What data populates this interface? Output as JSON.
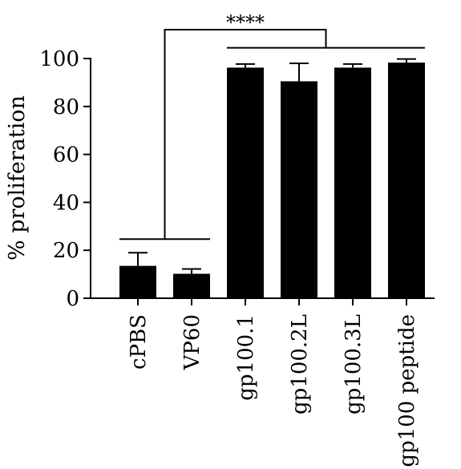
{
  "chart_data": {
    "type": "bar",
    "title": "",
    "xlabel": "",
    "ylabel": "% proliferation",
    "ylim": [
      0,
      100
    ],
    "yticks": [
      0,
      20,
      40,
      60,
      80,
      100
    ],
    "categories": [
      "cPBS",
      "VP60",
      "gp100.1",
      "gp100.2L",
      "gp100.3L",
      "gp100 peptide"
    ],
    "values": [
      13.5,
      10.2,
      96.2,
      90.5,
      96.2,
      98.3
    ],
    "error_upper": [
      5.5,
      2.0,
      1.5,
      7.5,
      1.5,
      1.5
    ],
    "bar_color": "#000000",
    "grid": false,
    "legend": "none",
    "significance": {
      "label": "****",
      "left_group": [
        "cPBS",
        "VP60"
      ],
      "right_group": [
        "gp100.1",
        "gp100.2L",
        "gp100.3L",
        "gp100 peptide"
      ]
    }
  }
}
